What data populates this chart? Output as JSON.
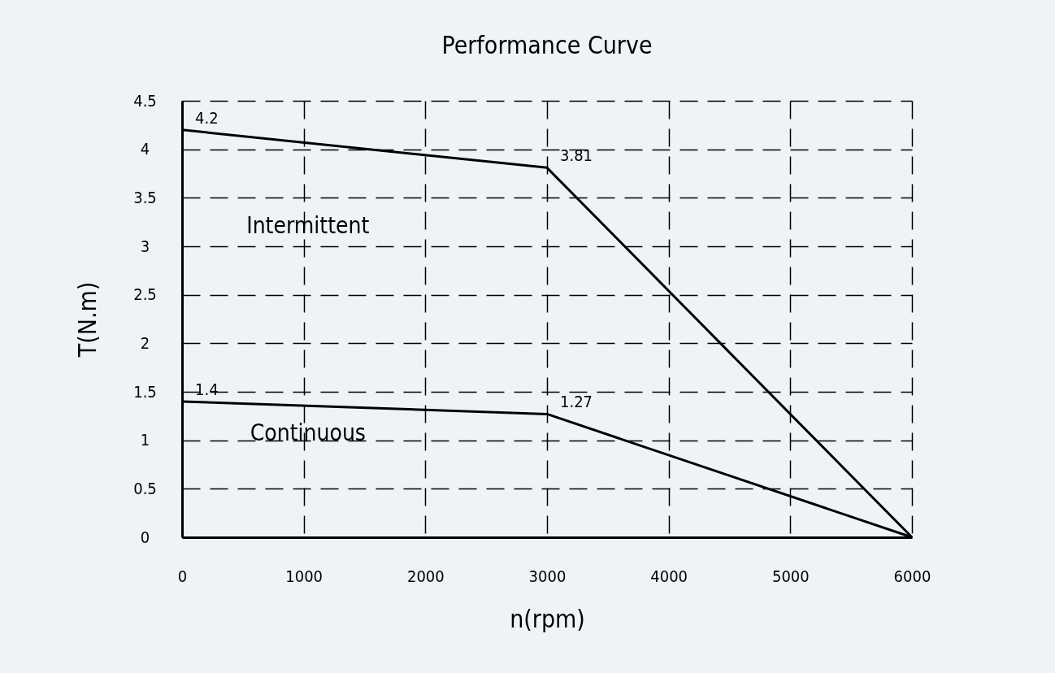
{
  "chart_data": {
    "type": "line",
    "title": "Performance Curve",
    "xlabel": "n(rpm)",
    "ylabel": "T(N.m)",
    "x": [
      0,
      3000,
      6000
    ],
    "series": [
      {
        "name": "Intermittent",
        "color": "#000000",
        "values": [
          4.2,
          3.81,
          0
        ],
        "value_labels": [
          "4.2",
          "3.81",
          null
        ]
      },
      {
        "name": "Continuous",
        "color": "#000000",
        "values": [
          1.4,
          1.27,
          0
        ],
        "value_labels": [
          "1.4",
          "1.27",
          null
        ]
      }
    ],
    "xlim": [
      0,
      6000
    ],
    "xticks": [
      0,
      1000,
      2000,
      3000,
      4000,
      5000,
      6000
    ],
    "ylim": [
      0,
      4.5
    ],
    "yticks": [
      0,
      0.5,
      1,
      1.5,
      2,
      2.5,
      3,
      3.5,
      4,
      4.5
    ],
    "grid": true,
    "legend": false,
    "marker": "none",
    "line_style": "solid"
  }
}
